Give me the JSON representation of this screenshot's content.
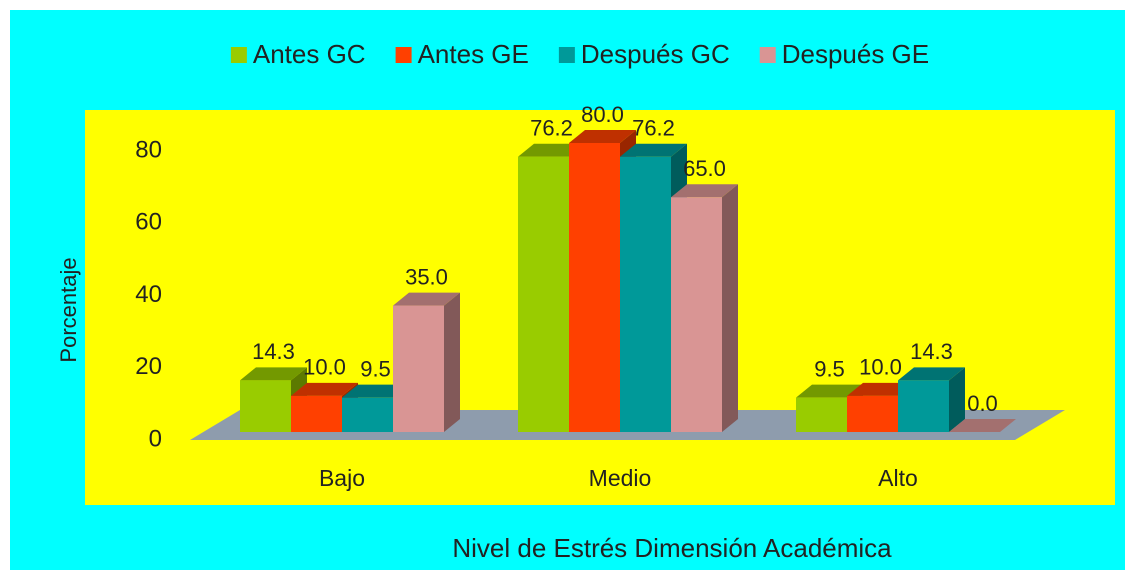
{
  "chart_data": {
    "type": "bar3d",
    "x_label": "Nivel de Estrés Dimensión Académica",
    "y_label": "Porcentaje",
    "categories": [
      "Bajo",
      "Medio",
      "Alto"
    ],
    "series": [
      {
        "name": "Antes GC",
        "color": "#99cc00",
        "values": [
          14.3,
          76.2,
          9.5
        ],
        "value_labels": [
          "14.3",
          "76.2",
          "9.5"
        ]
      },
      {
        "name": "Antes GE",
        "color": "#ff4000",
        "values": [
          10.0,
          80.0,
          10.0
        ],
        "value_labels": [
          "10.0",
          "80.0",
          "10.0"
        ]
      },
      {
        "name": "Después GC",
        "color": "#009999",
        "values": [
          9.5,
          76.2,
          14.3
        ],
        "value_labels": [
          "9.5",
          "76.2",
          "14.3"
        ]
      },
      {
        "name": "Después GE",
        "color": "#d99594",
        "values": [
          35.0,
          65.0,
          0.0
        ],
        "value_labels": [
          "35.0",
          "65.0",
          "0.0"
        ]
      }
    ],
    "ylim": [
      0,
      80
    ],
    "yticks": [
      0,
      20,
      40,
      60,
      80
    ]
  }
}
